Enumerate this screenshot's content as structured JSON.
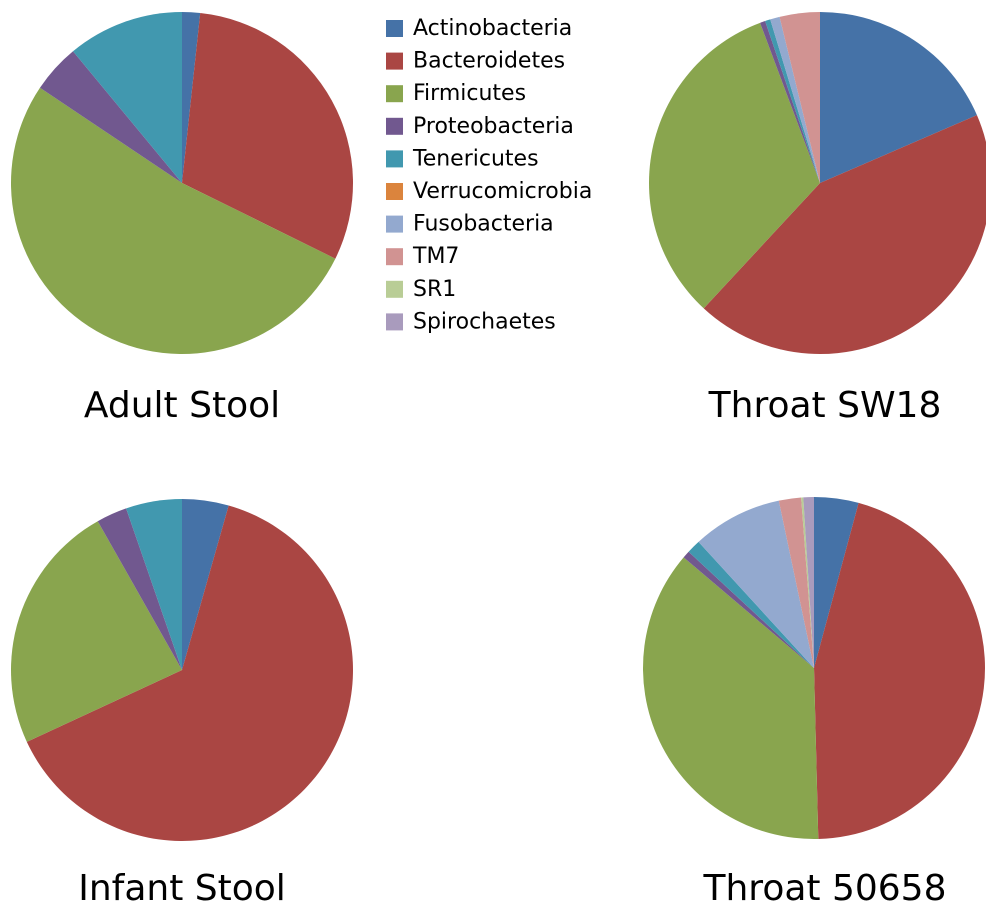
{
  "legend": {
    "labels": [
      "Actinobacteria",
      "Bacteroidetes",
      "Firmicutes",
      "Proteobacteria",
      "Tenericutes",
      "Verrucomicrobia",
      "Fusobacteria",
      "TM7",
      "SR1",
      "Spirochaetes"
    ],
    "colors": [
      "#4572a7",
      "#aa4643",
      "#89a54e",
      "#71588f",
      "#4198af",
      "#db843d",
      "#93a9cf",
      "#d19392",
      "#b9cd96",
      "#a99bbd"
    ]
  },
  "chart_data": [
    {
      "type": "pie",
      "title": "Adult Stool",
      "values": [
        1.7,
        30.6,
        52.1,
        4.6,
        11.0,
        0,
        0,
        0,
        0,
        0
      ]
    },
    {
      "type": "pie",
      "title": "Throat SW18",
      "values": [
        18.5,
        43.4,
        32.4,
        0.5,
        0.5,
        0,
        0.9,
        3.8,
        0,
        0
      ]
    },
    {
      "type": "pie",
      "title": "Infant Stool",
      "values": [
        4.4,
        63.7,
        23.7,
        2.9,
        5.3,
        0,
        0,
        0,
        0,
        0
      ]
    },
    {
      "type": "pie",
      "title": "Throat 50658",
      "values": [
        4.2,
        45.4,
        36.6,
        0.7,
        1.3,
        0,
        8.5,
        2.1,
        0.2,
        1.0
      ]
    }
  ]
}
